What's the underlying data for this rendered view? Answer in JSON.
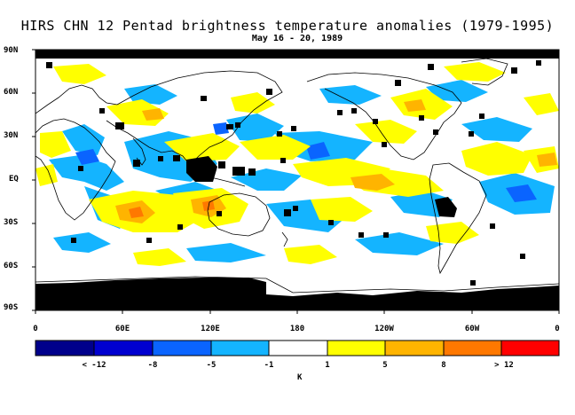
{
  "title": "HIRS CHN 12 Pentad brightness temperature anomalies (1979-1995)",
  "subtitle": "May 16 - 20, 1989",
  "latitude_labels": [
    "90N",
    "60N",
    "30N",
    "EQ",
    "30S",
    "60S",
    "90S"
  ],
  "longitude_labels": [
    "0",
    "60E",
    "120E",
    "180",
    "120W",
    "60W",
    "0"
  ],
  "colorbar": {
    "labels": [
      "< -12",
      "-8",
      "-5",
      "-1",
      "1",
      "5",
      "8",
      "> 12"
    ],
    "unit": "K",
    "colors": [
      "#00008b",
      "#0000d0",
      "#0a64ff",
      "#14b4ff",
      "#ffffff",
      "#ffff00",
      "#ffb400",
      "#ff7800",
      "#ff0000"
    ]
  },
  "map_colors": {
    "missing": "#000000",
    "neutral": "#ffffff",
    "coast": "#000000"
  }
}
